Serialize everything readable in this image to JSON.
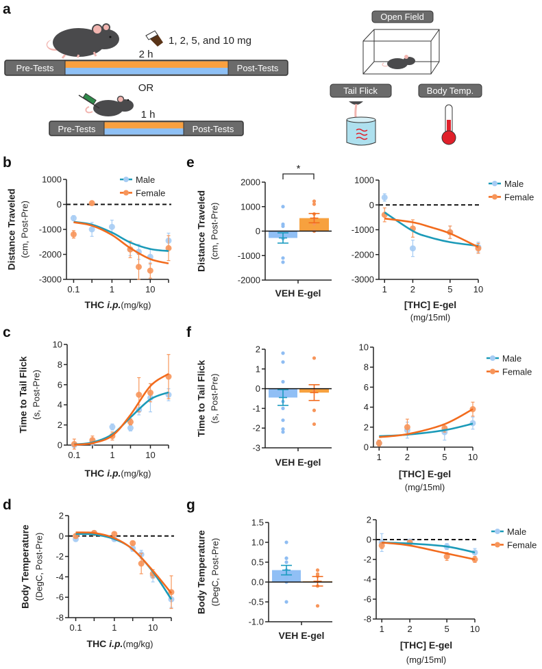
{
  "panel_letters": {
    "a": "a",
    "b": "b",
    "c": "c",
    "d": "d",
    "e": "e",
    "f": "f",
    "g": "g"
  },
  "schematic": {
    "dose_text": "1, 2, 5, and 10 mg",
    "time_long": "2 h",
    "or_text": "OR",
    "time_short": "1 h",
    "pre_tests": "Pre-Tests",
    "post_tests": "Post-Tests",
    "open_field": "Open Field",
    "tail_flick": "Tail Flick",
    "body_temp": "Body Temp.",
    "colors": {
      "oral_period": "#f9a03f",
      "injection_period": "#8ec0f5",
      "bar": "#6b6b6b",
      "thermometer": "#e0202a"
    }
  },
  "chart_data": [
    {
      "panel": "b",
      "type": "line",
      "ylabel_bold": "Distance Traveled",
      "ylabel": "(cm, Post-Pre)",
      "xlabel_bold": "THC ",
      "xlabel_italic": "i.p.",
      "xlabel_unit": "(mg/kg)",
      "xscale": "log",
      "xlim": [
        0.065,
        30
      ],
      "ylim": [
        -3000,
        1000
      ],
      "xticks": [
        "0.1",
        "1",
        "10"
      ],
      "xticks_minor": [
        0.3,
        3,
        30
      ],
      "yticks": [
        "-3000",
        "-2000",
        "-1000",
        "0",
        "1000"
      ],
      "zero_line": true,
      "legend": "top-right",
      "series": [
        {
          "name": "Male",
          "color": "#1b9ab8",
          "point_color": "#a6ccf4",
          "x": [
            0.1,
            0.3,
            1,
            3,
            5,
            10,
            30
          ],
          "y": [
            -550,
            -1000,
            -900,
            -1800,
            -1900,
            -2100,
            -1450
          ],
          "err": [
            100,
            280,
            270,
            250,
            300,
            300,
            300
          ],
          "fit_x": [
            0.1,
            0.3,
            1,
            3,
            10,
            30
          ],
          "fit_y": [
            -697,
            -808,
            -1126,
            -1521,
            -1784,
            -1867
          ]
        },
        {
          "name": "Female",
          "color": "#f26b1d",
          "point_color": "#f7955a",
          "x": [
            0.1,
            0.3,
            3,
            5,
            10,
            30
          ],
          "y": [
            -1200,
            50,
            -1800,
            -2500,
            -2650,
            -1750
          ],
          "err": [
            150,
            50,
            330,
            500,
            300,
            500
          ],
          "fit_x": [
            0.1,
            0.3,
            1,
            3,
            10,
            30
          ],
          "fit_y": [
            -714,
            -849,
            -1223,
            -1747,
            -2188,
            -2363
          ]
        }
      ]
    },
    {
      "panel": "e",
      "type": "bar",
      "ylabel_bold": "Distance Traveled",
      "ylabel": "(cm, Post-Pre)",
      "xlabel_bold": "VEH E-gel",
      "ylim": [
        -2000,
        2000
      ],
      "yticks": [
        "-2000",
        "-1000",
        "0",
        "1000",
        "2000"
      ],
      "annotation": "*",
      "bars": [
        {
          "mean": -280,
          "sem": 210,
          "color": "#90bff5",
          "err_color": "#1a9bc0",
          "point_color": "#8fbdf2",
          "points": [
            1000,
            280,
            200,
            -300,
            -1100,
            -1270
          ]
        },
        {
          "mean": 530,
          "sem": 190,
          "color": "#f7a13e",
          "err_color": "#f26b1d",
          "point_color": "#f7955a",
          "points": [
            1220,
            1100,
            700,
            500,
            300,
            0
          ]
        }
      ]
    },
    {
      "panel": "e",
      "type": "line",
      "xlabel_bold": "[THC] E-gel",
      "xlabel": "(mg/15ml)",
      "xscale": "log",
      "xlim": [
        0.87,
        10
      ],
      "ylim": [
        -3000,
        1000
      ],
      "xticks": [
        "1",
        "2",
        "5",
        "10"
      ],
      "xticks_minor": [],
      "yticks": [
        "-3000",
        "-2000",
        "-1000",
        "0",
        "1000"
      ],
      "zero_line": true,
      "legend": "right",
      "series": [
        {
          "name": "Male",
          "color": "#1b9ab8",
          "point_color": "#a6ccf4",
          "x": [
            1,
            2,
            5,
            10
          ],
          "y": [
            300,
            -1750,
            -1100,
            -1700
          ],
          "err": [
            150,
            330,
            250,
            200
          ],
          "fit_x": [
            1,
            2,
            3,
            5,
            10
          ],
          "fit_y": [
            -300,
            -1050,
            -1300,
            -1500,
            -1650
          ]
        },
        {
          "name": "Female",
          "color": "#f26b1d",
          "point_color": "#f7955a",
          "x": [
            1,
            2,
            5,
            10
          ],
          "y": [
            -400,
            -950,
            -1100,
            -1750
          ],
          "err": [
            280,
            350,
            250,
            200
          ],
          "fit_x": [
            1,
            2,
            3,
            5,
            10
          ],
          "fit_y": [
            -550,
            -700,
            -880,
            -1150,
            -1700
          ]
        }
      ]
    },
    {
      "panel": "c",
      "type": "line",
      "ylabel_bold": "Time to Tail Flick",
      "ylabel": "(s, Post-Pre)",
      "xlabel_bold": "THC ",
      "xlabel_italic": "i.p.",
      "xlabel_unit": "(mg/kg)",
      "xscale": "log",
      "xlim": [
        0.065,
        30
      ],
      "ylim": [
        0,
        10
      ],
      "xticks": [
        "0.1",
        "1",
        "10"
      ],
      "xticks_minor": [
        0.3,
        3,
        30
      ],
      "yticks": [
        "0",
        "2",
        "4",
        "6",
        "8",
        "10"
      ],
      "zero_line": false,
      "series": [
        {
          "color": "#1b9ab8",
          "point_color": "#a6ccf4",
          "x": [
            0.1,
            0.3,
            1,
            3,
            5,
            10,
            30
          ],
          "y": [
            0,
            0.3,
            1.8,
            1.7,
            3.5,
            4.7,
            5.0
          ],
          "err": [
            0.2,
            0.3,
            0.3,
            0.3,
            0.5,
            1.4,
            0.6
          ],
          "fit_x": [
            0.1,
            0.3,
            1,
            3,
            10,
            30
          ],
          "fit_y": [
            0.07,
            0.26,
            1.07,
            2.75,
            4.55,
            5.24
          ]
        },
        {
          "color": "#f26b1d",
          "point_color": "#f7955a",
          "x": [
            0.1,
            0.3,
            1,
            3,
            5,
            10,
            30
          ],
          "y": [
            0.1,
            0.5,
            0.9,
            2.3,
            5.0,
            5.2,
            6.8
          ],
          "err": [
            0.5,
            0.4,
            0.4,
            0.3,
            1.7,
            0.9,
            2.2
          ],
          "fit_x": [
            0.1,
            0.3,
            1,
            3,
            10,
            30
          ],
          "fit_y": [
            0.04,
            0.19,
            0.94,
            3.0,
            5.87,
            7.08
          ]
        }
      ]
    },
    {
      "panel": "f",
      "type": "bar",
      "ylabel_bold": "Time to Tail Flick",
      "ylabel": "(s, Post-Pre)",
      "xlabel_bold": "VEH E-gel",
      "ylim": [
        -3,
        2
      ],
      "yticks": [
        "-3",
        "-2",
        "-1",
        "0",
        "1",
        "2"
      ],
      "bars": [
        {
          "mean": -0.45,
          "sem": 0.4,
          "color": "#90bff5",
          "err_color": "#1a9bc0",
          "point_color": "#8fbdf2",
          "points": [
            1.8,
            1.35,
            0.35,
            -0.65,
            -1.0,
            -1.6,
            -2.05,
            -2.2
          ]
        },
        {
          "mean": -0.2,
          "sem": 0.4,
          "color": "#f7a13e",
          "err_color": "#f26b1d",
          "point_color": "#f7955a",
          "points": [
            1.55,
            -0.1,
            -1.1,
            -1.8
          ]
        }
      ]
    },
    {
      "panel": "f",
      "type": "line",
      "xlabel_bold": "[THC] E-gel",
      "xlabel": "(mg/15ml)",
      "xscale": "log",
      "xlim": [
        0.87,
        10
      ],
      "ylim": [
        0,
        10
      ],
      "xticks": [
        "1",
        "2",
        "5",
        "10"
      ],
      "xticks_minor": [],
      "yticks": [
        "0",
        "2",
        "4",
        "6",
        "8",
        "10"
      ],
      "zero_line": false,
      "legend": "right",
      "series": [
        {
          "name": "Male",
          "color": "#1b9ab8",
          "point_color": "#a6ccf4",
          "x": [
            1,
            2,
            5,
            10
          ],
          "y": [
            0.4,
            1.7,
            1.5,
            2.4
          ],
          "err": [
            0.3,
            0.8,
            0.8,
            0.6
          ],
          "fit_x": [
            1,
            2,
            5,
            10
          ],
          "fit_y": [
            1.1,
            1.25,
            1.7,
            2.35
          ]
        },
        {
          "name": "Female",
          "color": "#f26b1d",
          "point_color": "#f7955a",
          "x": [
            1,
            2,
            5,
            10
          ],
          "y": [
            0.4,
            2.0,
            1.9,
            3.8
          ],
          "err": [
            0.3,
            0.8,
            0.4,
            0.7
          ],
          "fit_x": [
            1,
            2,
            5,
            10
          ],
          "fit_y": [
            1.0,
            1.3,
            2.3,
            3.8
          ]
        }
      ]
    },
    {
      "panel": "d",
      "type": "line",
      "ylabel_bold": "Body Temperature",
      "ylabel": "(DegC, Post-Pre)",
      "xlabel_bold": "THC ",
      "xlabel_italic": "i.p.",
      "xlabel_unit": "(mg/kg)",
      "xscale": "log",
      "xlim": [
        0.065,
        30
      ],
      "ylim": [
        -8,
        2
      ],
      "xticks": [
        "0.1",
        "1",
        "10"
      ],
      "xticks_minor": [
        0.3,
        3,
        30
      ],
      "yticks": [
        "-8",
        "-6",
        "-4",
        "-2",
        "0",
        "2"
      ],
      "zero_line": true,
      "series": [
        {
          "color": "#1b9ab8",
          "point_color": "#a6ccf4",
          "x": [
            0.1,
            0.3,
            1,
            3,
            5,
            10,
            30
          ],
          "y": [
            -0.3,
            0.3,
            -0.3,
            -1.2,
            -1.8,
            -3.9,
            -6.2
          ],
          "err": [
            0.2,
            0.2,
            0.2,
            0.3,
            0.4,
            0.6,
            0.8
          ],
          "fit_x": [
            0.1,
            0.3,
            1,
            3,
            10,
            30
          ],
          "fit_y": [
            0.2,
            0.15,
            -0.3,
            -1.3,
            -3.5,
            -6.2
          ]
        },
        {
          "color": "#f26b1d",
          "point_color": "#f7955a",
          "x": [
            0.1,
            0.3,
            1,
            3,
            5,
            10,
            30
          ],
          "y": [
            0,
            0.3,
            0.2,
            -0.7,
            -2.7,
            -3.7,
            -5.5
          ],
          "err": [
            0.2,
            0.2,
            0.2,
            0.2,
            1.0,
            0.4,
            1.6
          ],
          "fit_x": [
            0.1,
            0.3,
            1,
            3,
            10,
            30
          ],
          "fit_y": [
            0.35,
            0.3,
            -0.2,
            -1.3,
            -3.4,
            -5.6
          ]
        }
      ]
    },
    {
      "panel": "g",
      "type": "bar",
      "ylabel_bold": "Body Temperature",
      "ylabel": "(DegC, Post-Pre)",
      "xlabel_bold": "VEH E-gel",
      "ylim": [
        -1.0,
        1.5
      ],
      "yticks": [
        "-1.0",
        "-0.5",
        "0.0",
        "0.5",
        "1.0",
        "1.5"
      ],
      "bars": [
        {
          "mean": 0.3,
          "sem": 0.12,
          "color": "#90bff5",
          "err_color": "#1a9bc0",
          "point_color": "#8fbdf2",
          "points": [
            1.0,
            0.6,
            0.6,
            0.5,
            0.3,
            0.2,
            0.1,
            0.0,
            -0.5
          ]
        },
        {
          "mean": 0.02,
          "sem": 0.12,
          "color": "#f7a13e",
          "err_color": "#f26b1d",
          "point_color": "#f7955a",
          "points": [
            0.3,
            0.2,
            0.15,
            -0.1,
            -0.6
          ]
        }
      ]
    },
    {
      "panel": "g",
      "type": "line",
      "xlabel_bold": "[THC] E-gel",
      "xlabel": "(mg/15ml)",
      "xscale": "log",
      "xlim": [
        0.87,
        10
      ],
      "ylim": [
        -8,
        2
      ],
      "xticks": [
        "1",
        "2",
        "5",
        "10"
      ],
      "xticks_minor": [],
      "yticks": [
        "-8",
        "-6",
        "-4",
        "-2",
        "0",
        "2"
      ],
      "zero_line": true,
      "legend": "right",
      "series": [
        {
          "name": "Male",
          "color": "#1b9ab8",
          "point_color": "#a6ccf4",
          "x": [
            1,
            2,
            5,
            10
          ],
          "y": [
            -0.3,
            -0.2,
            -0.7,
            -1.3
          ],
          "err": [
            0.9,
            0.2,
            0.3,
            0.4
          ],
          "fit_x": [
            1,
            2,
            5,
            10
          ],
          "fit_y": [
            -0.3,
            -0.4,
            -0.7,
            -1.3
          ]
        },
        {
          "name": "Female",
          "color": "#f26b1d",
          "point_color": "#f7955a",
          "x": [
            1,
            2,
            5,
            10
          ],
          "y": [
            -0.6,
            -0.3,
            -1.7,
            -2.0
          ],
          "err": [
            0.3,
            0.2,
            0.4,
            0.3
          ],
          "fit_x": [
            1,
            2,
            5,
            10
          ],
          "fit_y": [
            -0.3,
            -0.6,
            -1.4,
            -2.0
          ]
        }
      ]
    }
  ]
}
